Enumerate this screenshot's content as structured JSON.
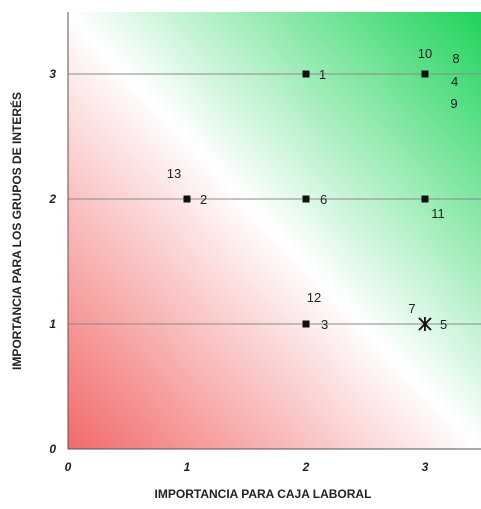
{
  "chart_data": {
    "type": "scatter",
    "title": "",
    "xlabel": "IMPORTANCIA PARA CAJA LABORAL",
    "ylabel": "IMPORTANCIA PARA LOS GRUPOS DE INTERÉS",
    "xlim": [
      0,
      3.5
    ],
    "ylim": [
      0,
      3.5
    ],
    "x_ticks": [
      "0",
      "1",
      "2",
      "3"
    ],
    "y_ticks": [
      "0",
      "1",
      "2",
      "3"
    ],
    "grid": "horizontal",
    "background": "diagonal gradient: red bottom-left, white center, green top-right",
    "colors": {
      "low": "#f26a6a",
      "mid": "#ffffff",
      "high": "#1fd35a",
      "gridline": "#8a8a8a",
      "point": "#111111"
    },
    "points": [
      {
        "label": "1",
        "x": 2,
        "y": 3,
        "marker": "square"
      },
      {
        "label": "2",
        "x": 1,
        "y": 2,
        "marker": "square"
      },
      {
        "label": "3",
        "x": 2,
        "y": 1,
        "marker": "square"
      },
      {
        "label": "4",
        "x": 3,
        "y": 3,
        "marker": "none"
      },
      {
        "label": "5",
        "x": 3,
        "y": 1,
        "marker": "star"
      },
      {
        "label": "6",
        "x": 2,
        "y": 2,
        "marker": "square"
      },
      {
        "label": "7",
        "x": 3,
        "y": 1,
        "marker": "star"
      },
      {
        "label": "8",
        "x": 3,
        "y": 3,
        "marker": "none"
      },
      {
        "label": "9",
        "x": 3,
        "y": 3,
        "marker": "none"
      },
      {
        "label": "10",
        "x": 3,
        "y": 3,
        "marker": "square"
      },
      {
        "label": "11",
        "x": 3,
        "y": 2,
        "marker": "square"
      },
      {
        "label": "12",
        "x": 2,
        "y": 1,
        "marker": "square"
      },
      {
        "label": "13",
        "x": 1,
        "y": 2,
        "marker": "square"
      }
    ]
  }
}
